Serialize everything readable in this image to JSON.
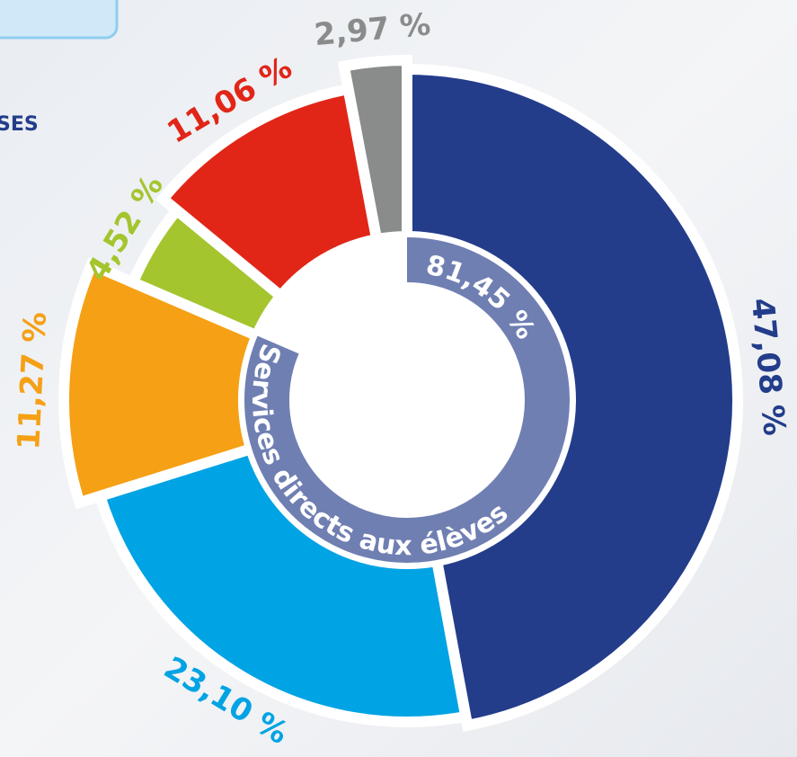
{
  "header_fragment": "SES",
  "chart_data": {
    "type": "pie",
    "values": [
      47.08,
      23.1,
      11.27,
      4.52,
      11.06,
      2.97
    ],
    "value_labels": [
      "47,08 %",
      "23,10 %",
      "11,27 %",
      "4,52 %",
      "11,06 %",
      "2,97 %"
    ],
    "colors": [
      "#233d8b",
      "#00a3e4",
      "#f5a015",
      "#a4c52e",
      "#e12618",
      "#8a8c8b"
    ],
    "inner_ring": {
      "value": 81.45,
      "value_label": "81,45 %",
      "label": "Services directs aux élèves",
      "color": "#6f7fb2"
    }
  }
}
